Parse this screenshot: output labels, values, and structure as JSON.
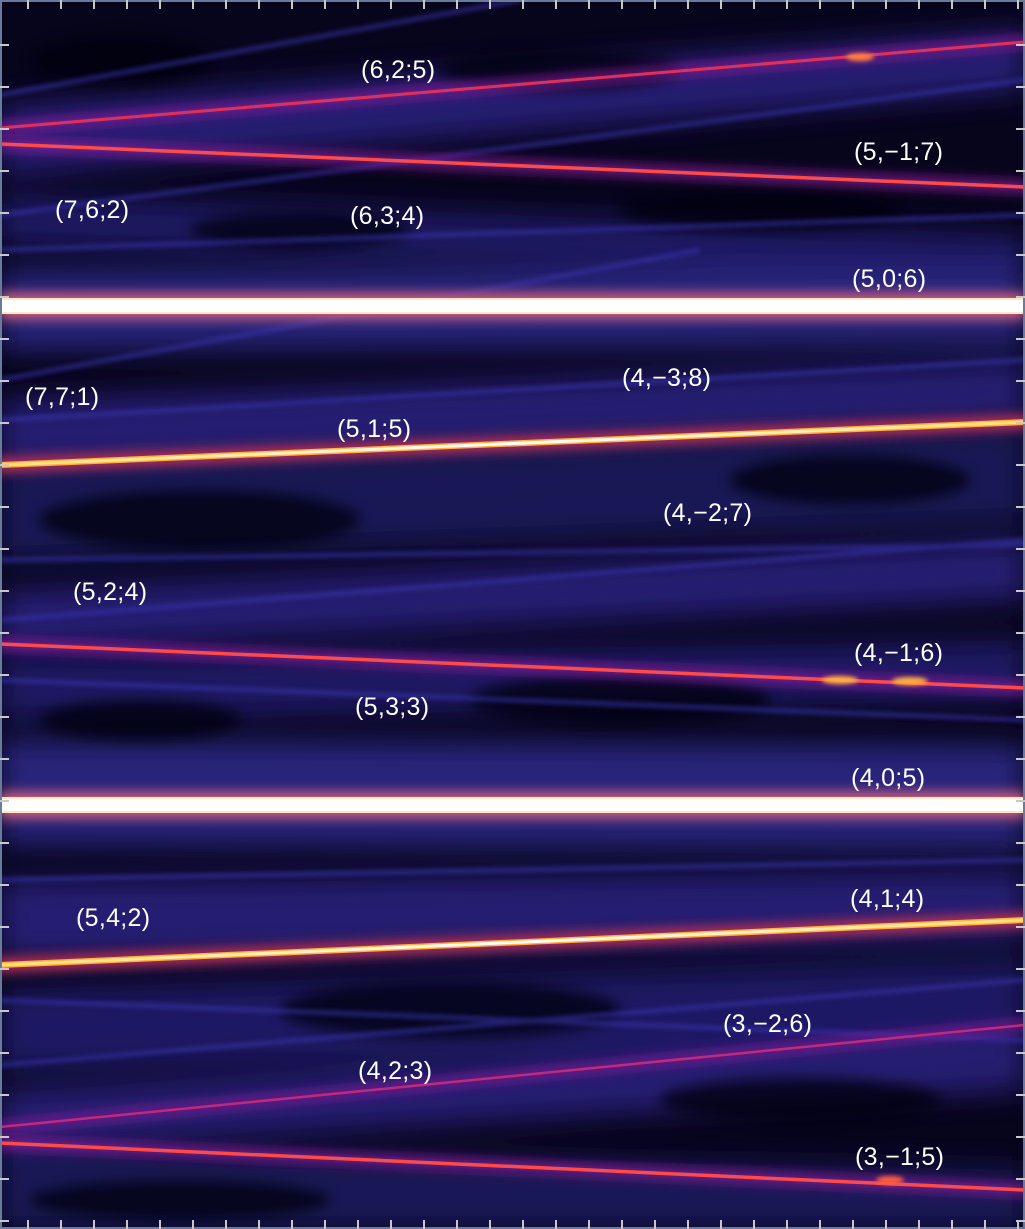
{
  "labels": [
    {
      "id": "m625",
      "text": "(6,2;5)"
    },
    {
      "id": "m5m17",
      "text": "(5,−1;7)"
    },
    {
      "id": "m762",
      "text": "(7,6;2)"
    },
    {
      "id": "m634",
      "text": "(6,3;4)"
    },
    {
      "id": "m506",
      "text": "(5,0;6)"
    },
    {
      "id": "m771",
      "text": "(7,7;1)"
    },
    {
      "id": "m4m38",
      "text": "(4,−3;8)"
    },
    {
      "id": "m515",
      "text": "(5,1;5)"
    },
    {
      "id": "m4m27",
      "text": "(4,−2;7)"
    },
    {
      "id": "m524",
      "text": "(5,2;4)"
    },
    {
      "id": "m4m16",
      "text": "(4,−1;6)"
    },
    {
      "id": "m533",
      "text": "(5,3;3)"
    },
    {
      "id": "m405",
      "text": "(4,0;5)"
    },
    {
      "id": "m542",
      "text": "(5,4;2)"
    },
    {
      "id": "m414",
      "text": "(4,1;4)"
    },
    {
      "id": "m3m26",
      "text": "(3,−2;6)"
    },
    {
      "id": "m423",
      "text": "(4,2;3)"
    },
    {
      "id": "m3m15",
      "text": "(3,−1;5)"
    }
  ],
  "colors": {
    "background": "#07051c",
    "diffuse": "#2a2480",
    "glow": "#8a1a9a",
    "line_medium": "#e0305a",
    "line_bright": "#ffb040",
    "line_white": "#ffffff",
    "frame": "#6a7a9a",
    "tick": "#c8c8cc"
  }
}
